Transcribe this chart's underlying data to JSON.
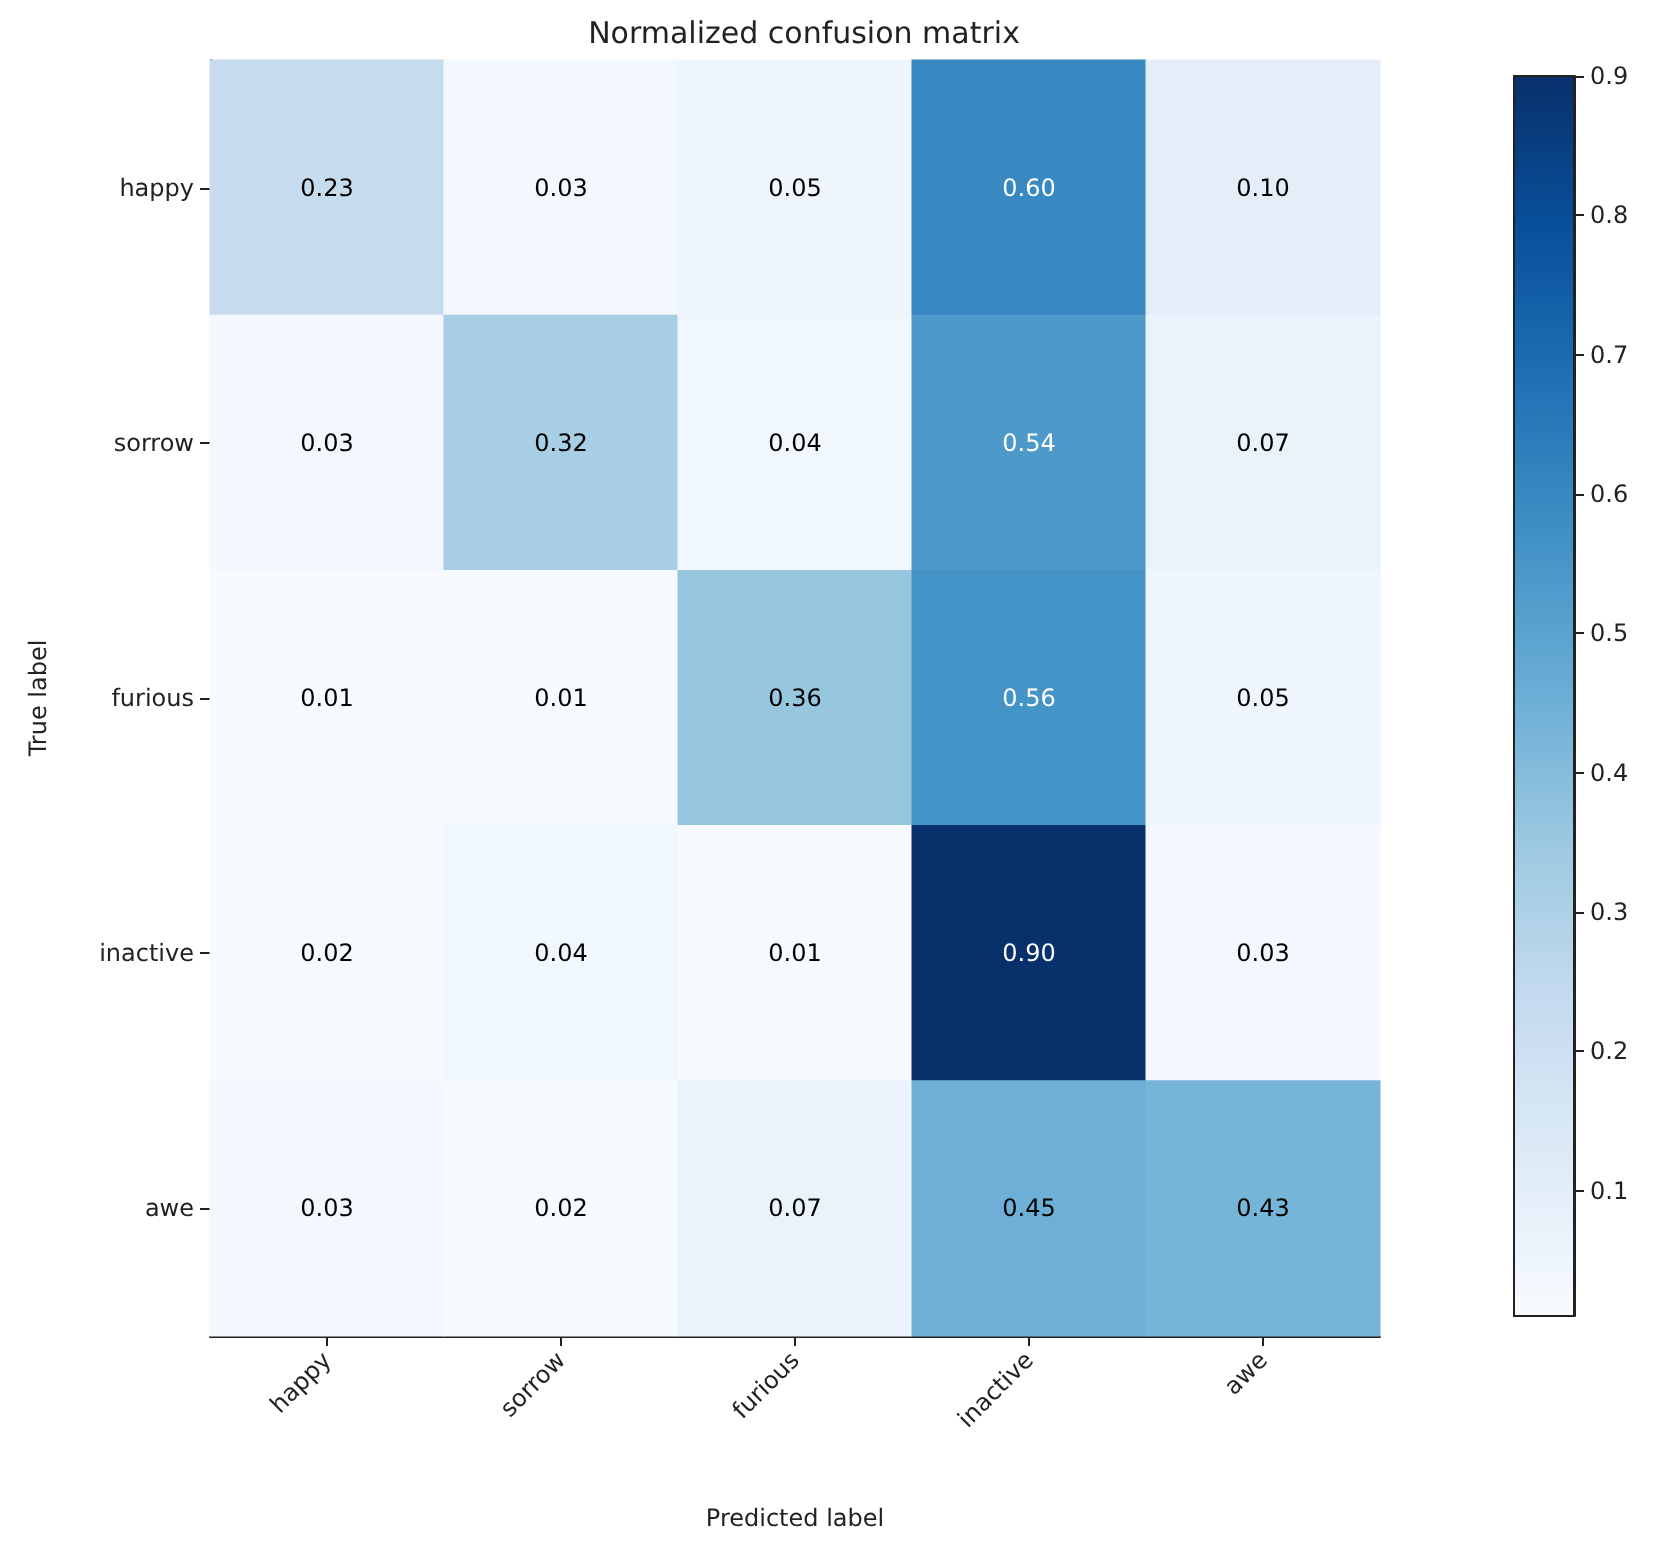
{
  "chart_data": {
    "type": "heatmap",
    "title": "Normalized confusion matrix",
    "xlabel": "Predicted label",
    "ylabel": "True label",
    "clabel": null,
    "categories": [
      "happy",
      "sorrow",
      "furious",
      "inactive",
      "awe"
    ],
    "y_categories": [
      "happy",
      "sorrow",
      "furious",
      "inactive",
      "awe"
    ],
    "cells": [
      [
        0.23,
        0.03,
        0.05,
        0.6,
        0.1
      ],
      [
        0.03,
        0.32,
        0.04,
        0.54,
        0.07
      ],
      [
        0.01,
        0.01,
        0.36,
        0.56,
        0.05
      ],
      [
        0.02,
        0.04,
        0.01,
        0.9,
        0.03
      ],
      [
        0.03,
        0.02,
        0.07,
        0.45,
        0.43
      ]
    ],
    "cell_labels": [
      [
        "0.23",
        "0.03",
        "0.05",
        "0.60",
        "0.10"
      ],
      [
        "0.03",
        "0.32",
        "0.04",
        "0.54",
        "0.07"
      ],
      [
        "0.01",
        "0.01",
        "0.36",
        "0.56",
        "0.05"
      ],
      [
        "0.02",
        "0.04",
        "0.01",
        "0.90",
        "0.03"
      ],
      [
        "0.03",
        "0.02",
        "0.07",
        "0.45",
        "0.43"
      ]
    ],
    "clim": [
      0.01,
      0.9
    ],
    "cticks": [
      0.1,
      0.2,
      0.3,
      0.4,
      0.5,
      0.6,
      0.7,
      0.8,
      0.9
    ]
  }
}
